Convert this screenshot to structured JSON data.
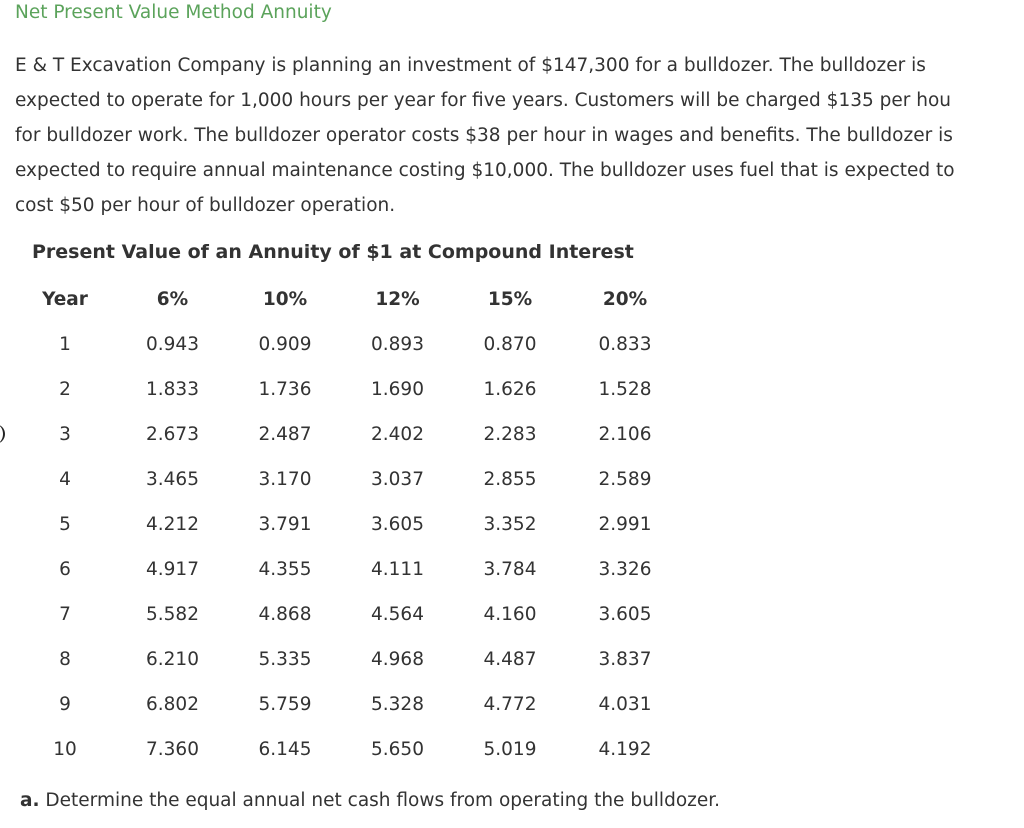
{
  "title": "Net Present Value Method Annuity",
  "colors": {
    "title": "#5ba35b",
    "text": "#333333"
  },
  "problem": {
    "lines": [
      "E & T Excavation Company is planning an investment of $147,300 for a bulldozer. The bulldozer is",
      "expected to operate for 1,000 hours per year for five years. Customers will be charged $135 per hou",
      "for bulldozer work. The bulldozer operator costs $38 per hour in wages and benefits. The bulldozer is",
      "expected to require annual maintenance costing $10,000. The bulldozer uses fuel that is expected to",
      "cost $50 per hour of bulldozer operation."
    ]
  },
  "table": {
    "title": "Present Value of an Annuity of $1 at Compound Interest",
    "headers": [
      "Year",
      "6%",
      "10%",
      "12%",
      "15%",
      "20%"
    ],
    "rows": [
      [
        "1",
        "0.943",
        "0.909",
        "0.893",
        "0.870",
        "0.833"
      ],
      [
        "2",
        "1.833",
        "1.736",
        "1.690",
        "1.626",
        "1.528"
      ],
      [
        "3",
        "2.673",
        "2.487",
        "2.402",
        "2.283",
        "2.106"
      ],
      [
        "4",
        "3.465",
        "3.170",
        "3.037",
        "2.855",
        "2.589"
      ],
      [
        "5",
        "4.212",
        "3.791",
        "3.605",
        "3.352",
        "2.991"
      ],
      [
        "6",
        "4.917",
        "4.355",
        "4.111",
        "3.784",
        "3.326"
      ],
      [
        "7",
        "5.582",
        "4.868",
        "4.564",
        "4.160",
        "3.605"
      ],
      [
        "8",
        "6.210",
        "5.335",
        "4.968",
        "4.487",
        "3.837"
      ],
      [
        "9",
        "6.802",
        "5.759",
        "5.328",
        "4.772",
        "4.031"
      ],
      [
        "10",
        "7.360",
        "6.145",
        "5.650",
        "5.019",
        "4.192"
      ]
    ]
  },
  "question": {
    "label": "a.",
    "text": " Determine the equal annual net cash flows from operating the bulldozer."
  }
}
